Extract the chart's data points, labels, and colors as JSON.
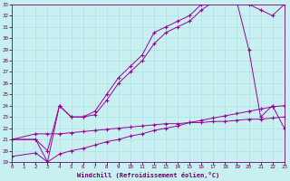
{
  "xlabel": "Windchill (Refroidissement éolien,°C)",
  "bg_color": "#c8f0f0",
  "line_color": "#990099",
  "xlim": [
    0,
    23
  ],
  "ylim": [
    19,
    33
  ],
  "yticks": [
    19,
    20,
    21,
    22,
    23,
    24,
    25,
    26,
    27,
    28,
    29,
    30,
    31,
    32,
    33
  ],
  "xticks": [
    0,
    1,
    2,
    3,
    4,
    5,
    6,
    7,
    8,
    9,
    10,
    11,
    12,
    13,
    14,
    15,
    16,
    17,
    18,
    19,
    20,
    21,
    22,
    23
  ],
  "line1_x": [
    0,
    2,
    3,
    4,
    5,
    6,
    7,
    8,
    9,
    10,
    11,
    12,
    13,
    14,
    15,
    16,
    17,
    18,
    19,
    20,
    21,
    22,
    23
  ],
  "line1_y": [
    21.0,
    21.5,
    21.5,
    21.5,
    21.6,
    21.7,
    21.8,
    21.9,
    22.0,
    22.1,
    22.2,
    22.3,
    22.4,
    22.4,
    22.5,
    22.5,
    22.6,
    22.6,
    22.7,
    22.8,
    22.8,
    22.9,
    23.0
  ],
  "line2_x": [
    0,
    2,
    3,
    4,
    5,
    6,
    7,
    8,
    9,
    10,
    11,
    12,
    13,
    14,
    15,
    16,
    17,
    18,
    19,
    20,
    21,
    22,
    23
  ],
  "line2_y": [
    21.0,
    21.0,
    20.0,
    24.0,
    23.0,
    23.0,
    23.2,
    24.5,
    26.0,
    27.0,
    28.0,
    29.5,
    30.5,
    31.0,
    31.5,
    32.5,
    33.2,
    33.3,
    33.2,
    33.0,
    32.5,
    32.0,
    33.0
  ],
  "line3_x": [
    0,
    2,
    3,
    4,
    5,
    6,
    7,
    8,
    9,
    10,
    11,
    12,
    13,
    14,
    15,
    16,
    17,
    18,
    19,
    20,
    21,
    22,
    23
  ],
  "line3_y": [
    21.0,
    21.0,
    19.0,
    24.0,
    23.0,
    23.0,
    23.5,
    25.0,
    26.5,
    27.5,
    28.5,
    30.5,
    31.0,
    31.5,
    32.0,
    33.0,
    33.3,
    33.3,
    33.2,
    29.0,
    23.0,
    24.0,
    22.0
  ],
  "line4_x": [
    0,
    2,
    3,
    4,
    5,
    6,
    7,
    8,
    9,
    10,
    11,
    12,
    13,
    14,
    15,
    16,
    17,
    18,
    19,
    20,
    21,
    22,
    23
  ],
  "line4_y": [
    19.5,
    19.8,
    19.0,
    19.7,
    20.0,
    20.2,
    20.5,
    20.8,
    21.0,
    21.3,
    21.5,
    21.8,
    22.0,
    22.2,
    22.5,
    22.7,
    22.9,
    23.1,
    23.3,
    23.5,
    23.7,
    23.9,
    24.0
  ]
}
